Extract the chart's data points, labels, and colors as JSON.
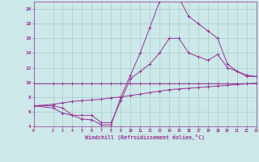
{
  "background_color": "#cce8e8",
  "grid_color": "#aacccc",
  "line_color": "#993399",
  "marker_color": "#993399",
  "xlabel": "Windchill (Refroidissement éolien,°C)",
  "xlim": [
    0,
    23
  ],
  "ylim": [
    4,
    21
  ],
  "yticks": [
    4,
    6,
    8,
    10,
    12,
    14,
    16,
    18,
    20
  ],
  "xticks": [
    0,
    2,
    3,
    4,
    5,
    6,
    7,
    8,
    9,
    10,
    11,
    12,
    13,
    14,
    15,
    16,
    17,
    18,
    19,
    20,
    21,
    22,
    23
  ],
  "series": [
    {
      "x": [
        0,
        2,
        3,
        4,
        5,
        6,
        7,
        8,
        9,
        10,
        11,
        12,
        13,
        14,
        15,
        16,
        17,
        18,
        19,
        20,
        21,
        22,
        23
      ],
      "y": [
        9.9,
        9.9,
        9.9,
        9.9,
        9.9,
        9.9,
        9.9,
        9.9,
        9.9,
        9.9,
        9.9,
        9.9,
        9.9,
        9.9,
        9.9,
        9.9,
        9.9,
        9.9,
        9.9,
        9.9,
        9.9,
        9.9,
        9.9
      ]
    },
    {
      "x": [
        0,
        2,
        3,
        4,
        5,
        6,
        7,
        8,
        9,
        10,
        11,
        12,
        13,
        14,
        15,
        16,
        17,
        18,
        19,
        20,
        21,
        22,
        23
      ],
      "y": [
        6.8,
        6.5,
        5.8,
        5.5,
        5.0,
        4.9,
        4.2,
        4.2,
        8.0,
        11.0,
        14.0,
        17.5,
        21.0,
        21.5,
        21.5,
        19.0,
        18.0,
        17.0,
        16.0,
        12.5,
        11.5,
        11.0,
        10.8
      ]
    },
    {
      "x": [
        0,
        2,
        3,
        4,
        5,
        6,
        7,
        8,
        9,
        10,
        11,
        12,
        13,
        14,
        15,
        16,
        17,
        18,
        19,
        20,
        21,
        22,
        23
      ],
      "y": [
        6.8,
        6.8,
        6.5,
        5.5,
        5.5,
        5.5,
        4.5,
        4.5,
        7.5,
        10.5,
        11.5,
        12.5,
        14.0,
        16.0,
        16.0,
        14.0,
        13.5,
        13.0,
        13.8,
        12.0,
        11.5,
        10.8,
        10.8
      ]
    },
    {
      "x": [
        0,
        2,
        3,
        4,
        5,
        6,
        7,
        8,
        9,
        10,
        11,
        12,
        13,
        14,
        15,
        16,
        17,
        18,
        19,
        20,
        21,
        22,
        23
      ],
      "y": [
        6.8,
        7.0,
        7.2,
        7.4,
        7.5,
        7.6,
        7.7,
        7.9,
        8.0,
        8.2,
        8.4,
        8.6,
        8.8,
        9.0,
        9.1,
        9.2,
        9.3,
        9.4,
        9.5,
        9.6,
        9.7,
        9.8,
        9.9
      ]
    }
  ]
}
